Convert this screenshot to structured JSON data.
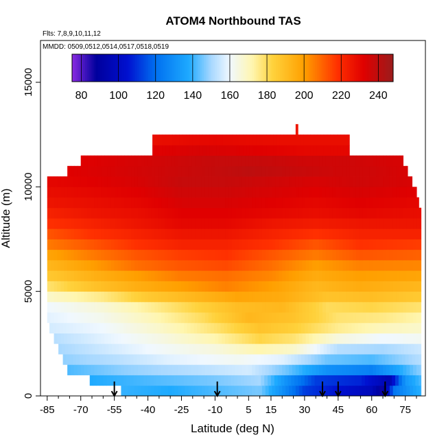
{
  "chart_data": {
    "type": "heatmap",
    "title": "ATOM4 Northbound TAS",
    "flights_note": "Flts: 7,8,9,10,11,12",
    "dates_note": "MMDD: 0509,0512,0514,0517,0518,0519",
    "xlabel": "Latitude (deg N)",
    "ylabel": "Altitude (m)",
    "xlim": [
      -88,
      84
    ],
    "ylim": [
      0,
      17000
    ],
    "x_ticks": [
      -85,
      -70,
      -55,
      -40,
      -25,
      -10,
      5,
      15,
      30,
      45,
      60,
      75
    ],
    "x_minor_ticks": [
      -80,
      -75,
      -65,
      -60,
      -50,
      -45,
      -35,
      -30,
      -20,
      -15,
      -5,
      0,
      10,
      20,
      25,
      35,
      40,
      50,
      55,
      65,
      70,
      80
    ],
    "y_ticks": [
      0,
      5000,
      10000,
      15000
    ],
    "colorbar": {
      "range": [
        75,
        248
      ],
      "ticks": [
        80,
        100,
        120,
        140,
        160,
        180,
        200,
        220,
        240
      ],
      "colors": [
        {
          "v": 75,
          "c": "#8a2be2"
        },
        {
          "v": 88,
          "c": "#00009c"
        },
        {
          "v": 105,
          "c": "#0010d0"
        },
        {
          "v": 120,
          "c": "#0070f0"
        },
        {
          "v": 138,
          "c": "#1eaaff"
        },
        {
          "v": 150,
          "c": "#a8d8ff"
        },
        {
          "v": 160,
          "c": "#f0f8ff"
        },
        {
          "v": 172,
          "c": "#fff6b0"
        },
        {
          "v": 183,
          "c": "#ffd23c"
        },
        {
          "v": 200,
          "c": "#ff9f00"
        },
        {
          "v": 218,
          "c": "#ff3000"
        },
        {
          "v": 232,
          "c": "#e00000"
        },
        {
          "v": 248,
          "c": "#9a1c1c"
        }
      ]
    },
    "altitude_bands": [
      {
        "y0": 0,
        "y1": 500,
        "lat_start": -52,
        "lat_end": 82,
        "values": [
          [
            -52,
            140
          ],
          [
            -30,
            138
          ],
          [
            -10,
            142
          ],
          [
            10,
            146
          ],
          [
            20,
            130
          ],
          [
            30,
            112
          ],
          [
            45,
            105
          ],
          [
            60,
            98
          ],
          [
            65,
            85
          ],
          [
            70,
            122
          ],
          [
            82,
            140
          ]
        ]
      },
      {
        "y0": 500,
        "y1": 1000,
        "lat_start": -66,
        "lat_end": 82,
        "values": [
          [
            -66,
            138
          ],
          [
            -40,
            142
          ],
          [
            -10,
            146
          ],
          [
            10,
            150
          ],
          [
            22,
            130
          ],
          [
            35,
            112
          ],
          [
            55,
            108
          ],
          [
            68,
            95
          ],
          [
            75,
            132
          ],
          [
            82,
            142
          ]
        ]
      },
      {
        "y0": 1000,
        "y1": 1500,
        "lat_start": -76,
        "lat_end": 82,
        "values": [
          [
            -76,
            142
          ],
          [
            -50,
            148
          ],
          [
            -20,
            152
          ],
          [
            5,
            156
          ],
          [
            22,
            145
          ],
          [
            40,
            130
          ],
          [
            60,
            125
          ],
          [
            70,
            135
          ],
          [
            82,
            148
          ]
        ]
      },
      {
        "y0": 1500,
        "y1": 2000,
        "lat_start": -78,
        "lat_end": 82,
        "values": [
          [
            -78,
            148
          ],
          [
            -55,
            152
          ],
          [
            -30,
            158
          ],
          [
            0,
            162
          ],
          [
            20,
            158
          ],
          [
            40,
            145
          ],
          [
            60,
            142
          ],
          [
            82,
            152
          ]
        ]
      },
      {
        "y0": 2000,
        "y1": 2500,
        "lat_start": -80,
        "lat_end": 82,
        "values": [
          [
            -80,
            150
          ],
          [
            -60,
            155
          ],
          [
            -40,
            160
          ],
          [
            -10,
            165
          ],
          [
            10,
            172
          ],
          [
            25,
            168
          ],
          [
            45,
            152
          ],
          [
            65,
            150
          ],
          [
            82,
            155
          ]
        ]
      },
      {
        "y0": 2500,
        "y1": 3000,
        "lat_start": -82,
        "lat_end": 82,
        "values": [
          [
            -82,
            152
          ],
          [
            -60,
            158
          ],
          [
            -35,
            164
          ],
          [
            -10,
            172
          ],
          [
            10,
            182
          ],
          [
            25,
            178
          ],
          [
            45,
            165
          ],
          [
            65,
            160
          ],
          [
            82,
            162
          ]
        ]
      },
      {
        "y0": 3000,
        "y1": 3500,
        "lat_start": -84,
        "lat_end": 82,
        "values": [
          [
            -84,
            156
          ],
          [
            -60,
            160
          ],
          [
            -35,
            168
          ],
          [
            -10,
            178
          ],
          [
            10,
            188
          ],
          [
            25,
            184
          ],
          [
            45,
            175
          ],
          [
            65,
            170
          ],
          [
            82,
            168
          ]
        ]
      },
      {
        "y0": 3500,
        "y1": 4000,
        "lat_start": -85,
        "lat_end": 82,
        "values": [
          [
            -85,
            158
          ],
          [
            -60,
            163
          ],
          [
            -40,
            170
          ],
          [
            -15,
            180
          ],
          [
            5,
            192
          ],
          [
            25,
            188
          ],
          [
            45,
            178
          ],
          [
            65,
            176
          ],
          [
            82,
            172
          ]
        ]
      },
      {
        "y0": 4000,
        "y1": 4500,
        "lat_start": -85,
        "lat_end": 82,
        "values": [
          [
            -85,
            160
          ],
          [
            -60,
            166
          ],
          [
            -40,
            174
          ],
          [
            -20,
            182
          ],
          [
            0,
            190
          ],
          [
            20,
            192
          ],
          [
            40,
            180
          ],
          [
            60,
            182
          ],
          [
            82,
            178
          ]
        ]
      },
      {
        "y0": 4500,
        "y1": 5000,
        "lat_start": -85,
        "lat_end": 82,
        "values": [
          [
            -85,
            168
          ],
          [
            -60,
            176
          ],
          [
            -40,
            186
          ],
          [
            -20,
            192
          ],
          [
            0,
            198
          ],
          [
            20,
            196
          ],
          [
            40,
            188
          ],
          [
            60,
            190
          ],
          [
            82,
            186
          ]
        ]
      },
      {
        "y0": 5000,
        "y1": 5500,
        "lat_start": -85,
        "lat_end": 82,
        "values": [
          [
            -85,
            178
          ],
          [
            -65,
            188
          ],
          [
            -45,
            195
          ],
          [
            -25,
            200
          ],
          [
            -5,
            205
          ],
          [
            15,
            200
          ],
          [
            35,
            192
          ],
          [
            55,
            196
          ],
          [
            82,
            192
          ]
        ]
      },
      {
        "y0": 5500,
        "y1": 6000,
        "lat_start": -85,
        "lat_end": 82,
        "values": [
          [
            -85,
            186
          ],
          [
            -65,
            194
          ],
          [
            -45,
            200
          ],
          [
            -25,
            206
          ],
          [
            -5,
            208
          ],
          [
            15,
            204
          ],
          [
            35,
            196
          ],
          [
            55,
            200
          ],
          [
            82,
            198
          ]
        ]
      },
      {
        "y0": 6000,
        "y1": 6500,
        "lat_start": -85,
        "lat_end": 82,
        "values": [
          [
            -85,
            192
          ],
          [
            -65,
            200
          ],
          [
            -45,
            208
          ],
          [
            -25,
            212
          ],
          [
            -5,
            214
          ],
          [
            15,
            208
          ],
          [
            35,
            200
          ],
          [
            55,
            205
          ],
          [
            82,
            204
          ]
        ]
      },
      {
        "y0": 6500,
        "y1": 7000,
        "lat_start": -85,
        "lat_end": 82,
        "values": [
          [
            -85,
            198
          ],
          [
            -65,
            206
          ],
          [
            -45,
            212
          ],
          [
            -25,
            216
          ],
          [
            -5,
            218
          ],
          [
            15,
            212
          ],
          [
            35,
            206
          ],
          [
            55,
            212
          ],
          [
            82,
            210
          ]
        ]
      },
      {
        "y0": 7000,
        "y1": 7500,
        "lat_start": -85,
        "lat_end": 82,
        "values": [
          [
            -85,
            206
          ],
          [
            -65,
            212
          ],
          [
            -45,
            218
          ],
          [
            -25,
            222
          ],
          [
            -5,
            222
          ],
          [
            15,
            218
          ],
          [
            35,
            212
          ],
          [
            55,
            218
          ],
          [
            82,
            216
          ]
        ]
      },
      {
        "y0": 7500,
        "y1": 8000,
        "lat_start": -85,
        "lat_end": 82,
        "values": [
          [
            -85,
            212
          ],
          [
            -65,
            218
          ],
          [
            -45,
            222
          ],
          [
            -25,
            226
          ],
          [
            -5,
            226
          ],
          [
            15,
            222
          ],
          [
            35,
            218
          ],
          [
            55,
            222
          ],
          [
            82,
            222
          ]
        ]
      },
      {
        "y0": 8000,
        "y1": 8500,
        "lat_start": -85,
        "lat_end": 82,
        "values": [
          [
            -85,
            218
          ],
          [
            -65,
            222
          ],
          [
            -45,
            226
          ],
          [
            -25,
            230
          ],
          [
            -5,
            230
          ],
          [
            15,
            226
          ],
          [
            35,
            224
          ],
          [
            55,
            226
          ],
          [
            82,
            226
          ]
        ]
      },
      {
        "y0": 8500,
        "y1": 9000,
        "lat_start": -85,
        "lat_end": 82,
        "values": [
          [
            -85,
            222
          ],
          [
            -65,
            226
          ],
          [
            -45,
            228
          ],
          [
            -25,
            232
          ],
          [
            -5,
            232
          ],
          [
            15,
            230
          ],
          [
            35,
            228
          ],
          [
            55,
            230
          ],
          [
            82,
            228
          ]
        ]
      },
      {
        "y0": 9000,
        "y1": 9500,
        "lat_start": -85,
        "lat_end": 81,
        "values": [
          [
            -85,
            226
          ],
          [
            -65,
            228
          ],
          [
            -45,
            230
          ],
          [
            -25,
            234
          ],
          [
            -5,
            234
          ],
          [
            15,
            232
          ],
          [
            35,
            230
          ],
          [
            55,
            232
          ],
          [
            81,
            230
          ]
        ]
      },
      {
        "y0": 9500,
        "y1": 10000,
        "lat_start": -85,
        "lat_end": 80,
        "values": [
          [
            -85,
            228
          ],
          [
            -65,
            230
          ],
          [
            -45,
            232
          ],
          [
            -25,
            236
          ],
          [
            -5,
            236
          ],
          [
            15,
            234
          ],
          [
            35,
            232
          ],
          [
            55,
            234
          ],
          [
            80,
            232
          ]
        ]
      },
      {
        "y0": 10000,
        "y1": 10500,
        "lat_start": -85,
        "lat_end": 78,
        "values": [
          [
            -85,
            230
          ],
          [
            -65,
            232
          ],
          [
            -45,
            234
          ],
          [
            -25,
            238
          ],
          [
            -5,
            238
          ],
          [
            15,
            236
          ],
          [
            35,
            234
          ],
          [
            55,
            236
          ],
          [
            78,
            234
          ]
        ]
      },
      {
        "y0": 10500,
        "y1": 11000,
        "lat_start": -76,
        "lat_end": 76,
        "values": [
          [
            -76,
            232
          ],
          [
            -55,
            234
          ],
          [
            -35,
            236
          ],
          [
            -15,
            238
          ],
          [
            5,
            240
          ],
          [
            25,
            238
          ],
          [
            45,
            236
          ],
          [
            60,
            236
          ],
          [
            76,
            234
          ]
        ]
      },
      {
        "y0": 11000,
        "y1": 11500,
        "lat_start": -70,
        "lat_end": 74,
        "values": [
          [
            -70,
            232
          ],
          [
            -50,
            234
          ],
          [
            -30,
            236
          ],
          [
            -10,
            238
          ],
          [
            10,
            238
          ],
          [
            30,
            236
          ],
          [
            50,
            236
          ],
          [
            74,
            234
          ]
        ]
      },
      {
        "y0": 11500,
        "y1": 12000,
        "lat_start": -38,
        "lat_end": 50,
        "values": [
          [
            -38,
            232
          ],
          [
            -15,
            234
          ],
          [
            10,
            232
          ],
          [
            30,
            230
          ],
          [
            50,
            230
          ]
        ]
      },
      {
        "y0": 12000,
        "y1": 12500,
        "lat_start": -38,
        "lat_end": 50,
        "values": [
          [
            -38,
            228
          ],
          [
            -10,
            230
          ],
          [
            20,
            228
          ],
          [
            50,
            228
          ]
        ]
      },
      {
        "y0": 12500,
        "y1": 13000,
        "lat_start": 26,
        "lat_end": 27,
        "values": [
          [
            26,
            226
          ],
          [
            27,
            226
          ]
        ]
      }
    ],
    "arrows_lat": [
      -55,
      -9,
      38,
      45,
      66
    ]
  }
}
